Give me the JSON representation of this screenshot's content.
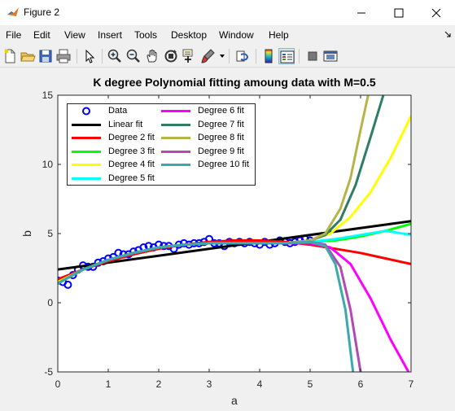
{
  "window": {
    "title": "Figure 2",
    "icon": "matlab-icon",
    "controls": [
      "minimize-icon",
      "maximize-icon",
      "close-icon"
    ]
  },
  "menu": {
    "items": [
      "File",
      "Edit",
      "View",
      "Insert",
      "Tools",
      "Desktop",
      "Window",
      "Help"
    ]
  },
  "toolbar": {
    "icons": [
      "new-figure-icon",
      "open-file-icon",
      "save-icon",
      "print-icon",
      "pointer-icon",
      "zoom-in-icon",
      "zoom-out-icon",
      "pan-icon",
      "rotate-3d-icon",
      "data-cursor-icon",
      "brush-icon",
      "link-plot-icon",
      "colorbar-icon",
      "legend-icon",
      "hide-plot-tools-icon",
      "show-plot-tools-icon"
    ],
    "active": [
      "legend-icon"
    ]
  },
  "chart_data": {
    "type": "line",
    "title": "K degree Polynomial fitting amoung data with M=0.5",
    "xlabel": "a",
    "ylabel": "b",
    "xlim": [
      0,
      7
    ],
    "ylim": [
      -5,
      15
    ],
    "xticks": [
      "0",
      "1",
      "2",
      "3",
      "4",
      "5",
      "6",
      "7"
    ],
    "yticks": [
      "15",
      "10",
      "5",
      "0",
      "-5"
    ],
    "grid": false,
    "legend_position": "top-left",
    "colors": {
      "data": "#0000ff",
      "linear": "#000000",
      "deg2": "#ff0000",
      "deg3": "#00ff00",
      "deg4": "#ffff00",
      "deg5": "#00ffff",
      "deg6": "#ff00ff",
      "deg7": "#2e7d64",
      "deg8": "#b5b547",
      "deg9": "#b24ab2",
      "deg10": "#3aaaaa"
    },
    "legend": [
      "Data",
      "Linear fit",
      "Degree 2 fit",
      "Degree 3 fit",
      "Degree 4 fit",
      "Degree 5 fit",
      "Degree 6 fit",
      "Degree 7 fit",
      "Degree 8 fit",
      "Degree 9 fit",
      "Degree 10 fit"
    ],
    "data_points": {
      "x": [
        0.0,
        0.1,
        0.2,
        0.3,
        0.4,
        0.5,
        0.6,
        0.7,
        0.8,
        0.9,
        1.0,
        1.1,
        1.2,
        1.3,
        1.4,
        1.5,
        1.6,
        1.7,
        1.8,
        1.9,
        2.0,
        2.1,
        2.2,
        2.3,
        2.4,
        2.5,
        2.6,
        2.7,
        2.8,
        2.9,
        3.0,
        3.1,
        3.2,
        3.3,
        3.4,
        3.5,
        3.6,
        3.7,
        3.8,
        3.9,
        4.0,
        4.1,
        4.2,
        4.3,
        4.4,
        4.5,
        4.6,
        4.7,
        4.8,
        4.9,
        5.0
      ],
      "y": [
        1.6,
        1.5,
        1.3,
        2.0,
        2.4,
        2.7,
        2.6,
        2.6,
        2.9,
        3.0,
        3.2,
        3.3,
        3.6,
        3.5,
        3.5,
        3.7,
        3.8,
        4.0,
        4.1,
        4.0,
        4.2,
        4.1,
        4.1,
        3.9,
        4.2,
        4.3,
        4.2,
        4.3,
        4.3,
        4.4,
        4.6,
        4.3,
        4.3,
        4.1,
        4.4,
        4.3,
        4.4,
        4.3,
        4.4,
        4.3,
        4.2,
        4.4,
        4.2,
        4.3,
        4.5,
        4.4,
        4.3,
        4.4,
        4.5,
        4.6,
        4.5
      ]
    },
    "series": [
      {
        "name": "Linear fit",
        "x": [
          0,
          7
        ],
        "y": [
          2.4,
          5.9
        ]
      },
      {
        "name": "Degree 2 fit",
        "x": [
          0,
          0.5,
          1,
          1.5,
          2,
          2.5,
          3,
          3.5,
          4,
          4.5,
          5,
          5.5,
          6,
          6.5,
          7
        ],
        "y": [
          1.7,
          2.4,
          3.0,
          3.5,
          3.9,
          4.2,
          4.4,
          4.5,
          4.5,
          4.4,
          4.2,
          3.9,
          3.6,
          3.2,
          2.8
        ]
      },
      {
        "name": "Degree 3 fit",
        "x": [
          0,
          0.5,
          1,
          1.5,
          2,
          2.5,
          3,
          3.5,
          4,
          4.5,
          5,
          5.5,
          6,
          6.5,
          7
        ],
        "y": [
          1.5,
          2.4,
          3.1,
          3.6,
          4.0,
          4.2,
          4.3,
          4.3,
          4.3,
          4.3,
          4.4,
          4.5,
          4.8,
          5.2,
          5.7
        ]
      },
      {
        "name": "Degree 4 fit",
        "x": [
          0,
          0.5,
          1,
          1.5,
          2,
          2.5,
          3,
          3.5,
          4,
          4.5,
          5,
          5.4,
          5.8,
          6.2,
          6.6,
          7
        ],
        "y": [
          1.5,
          2.4,
          3.1,
          3.6,
          4.0,
          4.2,
          4.3,
          4.3,
          4.3,
          4.3,
          4.5,
          5.0,
          6.2,
          8.0,
          10.5,
          13.5
        ]
      },
      {
        "name": "Degree 5 fit",
        "x": [
          0,
          0.5,
          1,
          1.5,
          2,
          2.5,
          3,
          3.5,
          4,
          4.5,
          5,
          5.5,
          6,
          6.5,
          7
        ],
        "y": [
          1.4,
          2.4,
          3.1,
          3.6,
          4.0,
          4.2,
          4.3,
          4.3,
          4.3,
          4.3,
          4.4,
          4.6,
          4.9,
          5.2,
          4.9
        ]
      },
      {
        "name": "Degree 6 fit",
        "x": [
          0,
          0.5,
          1,
          1.5,
          2,
          2.5,
          3,
          3.5,
          4,
          4.5,
          5,
          5.4,
          5.8,
          6.2,
          6.6,
          6.95
        ],
        "y": [
          1.4,
          2.4,
          3.1,
          3.6,
          4.0,
          4.2,
          4.3,
          4.3,
          4.3,
          4.3,
          4.3,
          4.0,
          2.8,
          0.3,
          -2.7,
          -5.0
        ]
      },
      {
        "name": "Degree 7 fit",
        "x": [
          0,
          0.5,
          1,
          1.5,
          2,
          2.5,
          3,
          3.5,
          4,
          4.5,
          5,
          5.3,
          5.6,
          5.9,
          6.2,
          6.45
        ],
        "y": [
          1.4,
          2.4,
          3.1,
          3.6,
          4.0,
          4.2,
          4.3,
          4.3,
          4.3,
          4.3,
          4.5,
          4.9,
          6.0,
          8.5,
          12.0,
          15.0
        ]
      },
      {
        "name": "Degree 8 fit",
        "x": [
          0,
          0.5,
          1,
          1.5,
          2,
          2.5,
          3,
          3.5,
          4,
          4.5,
          5,
          5.3,
          5.6,
          5.8,
          6.0,
          6.15
        ],
        "y": [
          1.4,
          2.4,
          3.1,
          3.6,
          4.0,
          4.2,
          4.3,
          4.3,
          4.3,
          4.3,
          4.5,
          5.0,
          6.8,
          9.0,
          12.5,
          15.0
        ]
      },
      {
        "name": "Degree 9 fit",
        "x": [
          0,
          0.5,
          1,
          1.5,
          2,
          2.5,
          3,
          3.5,
          4,
          4.5,
          5,
          5.3,
          5.6,
          5.8,
          6.0
        ],
        "y": [
          1.4,
          2.4,
          3.1,
          3.6,
          4.0,
          4.2,
          4.3,
          4.3,
          4.3,
          4.3,
          4.4,
          4.2,
          2.6,
          -0.5,
          -5.0
        ]
      },
      {
        "name": "Degree 10 fit",
        "x": [
          0,
          0.5,
          1,
          1.5,
          2,
          2.5,
          3,
          3.5,
          4,
          4.5,
          5,
          5.3,
          5.5,
          5.7,
          5.85
        ],
        "y": [
          1.4,
          2.4,
          3.1,
          3.6,
          4.0,
          4.2,
          4.3,
          4.3,
          4.3,
          4.3,
          4.4,
          4.1,
          2.8,
          -0.5,
          -5.0
        ]
      }
    ]
  }
}
